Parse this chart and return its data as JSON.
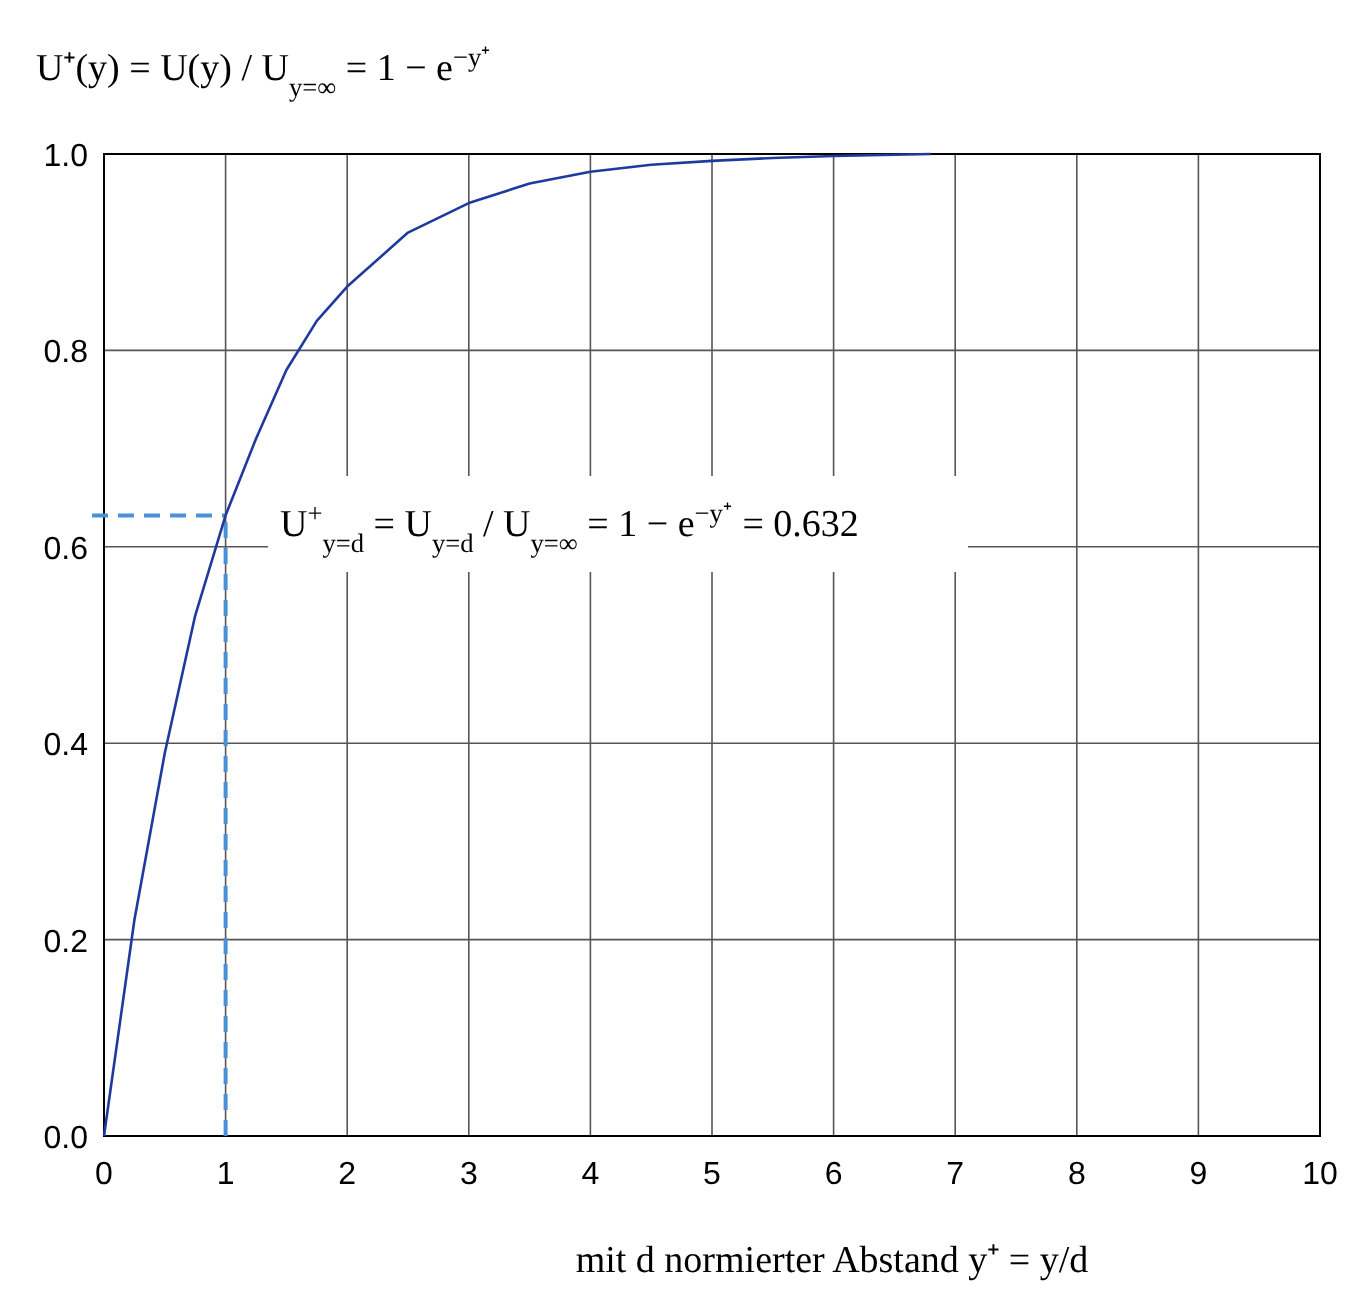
{
  "chart_data": {
    "type": "line",
    "title": "U⁺(y) = U(y) / U$_{y=∞}$ = 1 − e$^{−y⁺}$",
    "xlabel": "mit d normierter Abstand y⁺ = y/d",
    "x": [
      0,
      0.25,
      0.5,
      0.75,
      1,
      1.25,
      1.5,
      1.75,
      2,
      2.5,
      3,
      3.5,
      4,
      4.5,
      5,
      5.5,
      6,
      6.8
    ],
    "series": [
      {
        "color": "#1f3a9e",
        "values": [
          0,
          0.22,
          0.39,
          0.53,
          0.632,
          0.71,
          0.78,
          0.83,
          0.865,
          0.92,
          0.95,
          0.97,
          0.982,
          0.989,
          0.993,
          0.996,
          0.998,
          1.0
        ]
      }
    ],
    "xlim": [
      0,
      10
    ],
    "ylim": [
      0,
      1
    ],
    "xticks": [
      0,
      1,
      2,
      3,
      4,
      5,
      6,
      7,
      8,
      9,
      10
    ],
    "yticks": [
      {
        "value": 0,
        "label": "0.0"
      },
      {
        "value": 0.2,
        "label": "0.2"
      },
      {
        "value": 0.4,
        "label": "0.4"
      },
      {
        "value": 0.6,
        "label": "0.6"
      },
      {
        "value": 0.8,
        "label": "0.8"
      },
      {
        "value": 1,
        "label": "1.0"
      }
    ],
    "grid": true,
    "ref_lines": [
      {
        "axis": "x",
        "value": 1,
        "color": "#4a90d9",
        "line_style": "dashed"
      },
      {
        "axis": "y",
        "value": 0.632,
        "color": "#4a90d9",
        "line_style": "dashed"
      }
    ],
    "annotations": [
      "U$^{+}$$_{y=d}$ = U$_{y=d}$ / U$_{y=∞}$ = 1 − e$^{−y⁺}$ = 0.632"
    ]
  }
}
